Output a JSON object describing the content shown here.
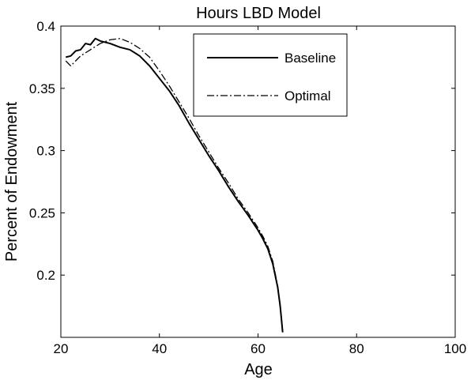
{
  "chart_data": {
    "type": "line",
    "title": "Hours LBD Model",
    "xlabel": "Age",
    "ylabel": "Percent of Endowment",
    "xlim": [
      20,
      100
    ],
    "ylim": [
      0.15,
      0.4
    ],
    "xticks": [
      20,
      40,
      60,
      80,
      100
    ],
    "yticks": [
      0.2,
      0.25,
      0.3,
      0.35,
      0.4
    ],
    "ytick_labels": [
      "0.2",
      "0.25",
      "0.3",
      "0.35",
      "0.4"
    ],
    "grid": false,
    "legend_position": "top-right",
    "series": [
      {
        "name": "Baseline",
        "style": "solid",
        "color": "#000000",
        "x": [
          21,
          22,
          23,
          24,
          25,
          26,
          27,
          28,
          30,
          32,
          34,
          36,
          38,
          40,
          42,
          44,
          46,
          48,
          50,
          52,
          54,
          56,
          58,
          60,
          61,
          62,
          63,
          64,
          64.5,
          65
        ],
        "y": [
          0.375,
          0.376,
          0.38,
          0.381,
          0.386,
          0.385,
          0.39,
          0.388,
          0.386,
          0.383,
          0.381,
          0.376,
          0.368,
          0.358,
          0.348,
          0.336,
          0.322,
          0.309,
          0.296,
          0.284,
          0.271,
          0.259,
          0.248,
          0.236,
          0.229,
          0.221,
          0.209,
          0.19,
          0.175,
          0.154
        ]
      },
      {
        "name": "Optimal",
        "style": "dashdot",
        "color": "#000000",
        "x": [
          21,
          22,
          23,
          24,
          26,
          28,
          30,
          32,
          34,
          36,
          38,
          40,
          42,
          44,
          46,
          48,
          50,
          52,
          54,
          56,
          58,
          60,
          61,
          62,
          63,
          64,
          64.5,
          65
        ],
        "y": [
          0.372,
          0.368,
          0.372,
          0.376,
          0.381,
          0.386,
          0.389,
          0.39,
          0.387,
          0.382,
          0.375,
          0.364,
          0.352,
          0.339,
          0.326,
          0.312,
          0.299,
          0.286,
          0.274,
          0.261,
          0.25,
          0.238,
          0.231,
          0.223,
          0.211,
          0.191,
          0.176,
          0.155
        ]
      }
    ]
  }
}
